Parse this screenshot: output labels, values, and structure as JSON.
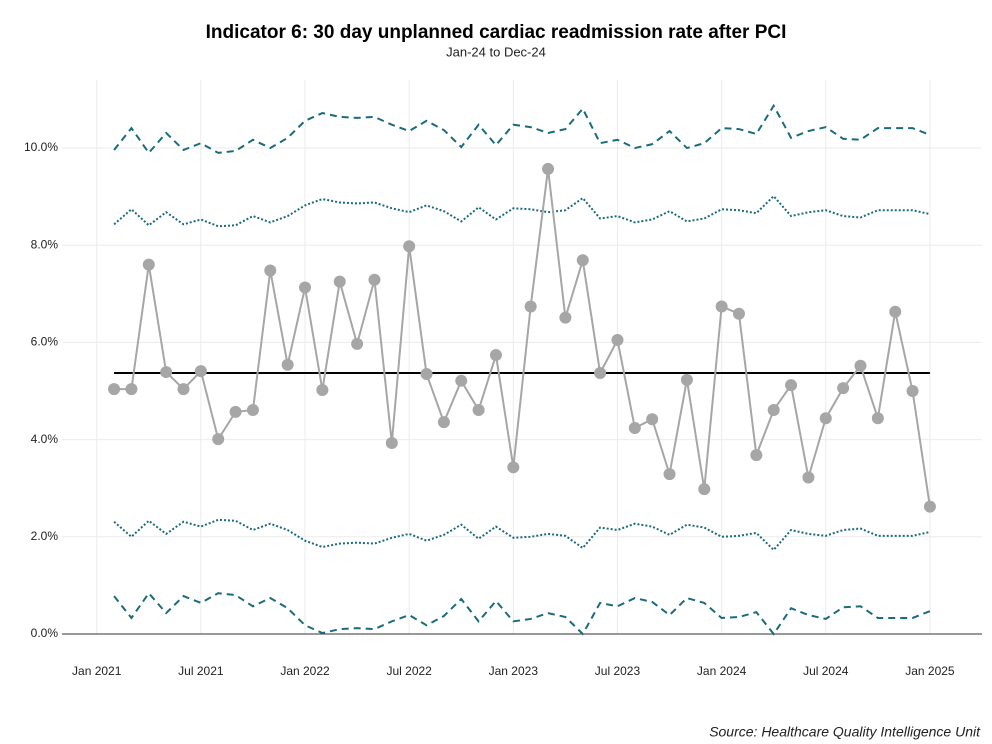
{
  "chart_data": {
    "type": "line",
    "title": "Indicator 6: 30 day unplanned cardiac readmission rate after PCI",
    "subtitle": "Jan-24 to Dec-24",
    "source": "Source: Healthcare Quality Intelligence Unit",
    "x": [
      "2021-02",
      "2021-03",
      "2021-04",
      "2021-05",
      "2021-06",
      "2021-07",
      "2021-08",
      "2021-09",
      "2021-10",
      "2021-11",
      "2021-12",
      "2022-01",
      "2022-02",
      "2022-03",
      "2022-04",
      "2022-05",
      "2022-06",
      "2022-07",
      "2022-08",
      "2022-09",
      "2022-10",
      "2022-11",
      "2022-12",
      "2023-01",
      "2023-02",
      "2023-03",
      "2023-04",
      "2023-05",
      "2023-06",
      "2023-07",
      "2023-08",
      "2023-09",
      "2023-10",
      "2023-11",
      "2023-12",
      "2024-01",
      "2024-02",
      "2024-03",
      "2024-04",
      "2024-05",
      "2024-06",
      "2024-07",
      "2024-08",
      "2024-09",
      "2024-10",
      "2024-11",
      "2024-12",
      "2025-01"
    ],
    "series": [
      {
        "color": "#1a6b7c",
        "linestyle": "dashed",
        "values": [
          9.96,
          10.41,
          9.9,
          10.31,
          9.96,
          10.1,
          9.9,
          9.94,
          10.17,
          10.0,
          10.21,
          10.56,
          10.72,
          10.64,
          10.62,
          10.64,
          10.48,
          10.35,
          10.56,
          10.37,
          10.02,
          10.48,
          10.06,
          10.48,
          10.43,
          10.31,
          10.39,
          10.81,
          10.1,
          10.17,
          10.0,
          10.08,
          10.35,
          10.0,
          10.1,
          10.41,
          10.39,
          10.29,
          10.87,
          10.21,
          10.35,
          10.43,
          10.19,
          10.17,
          10.41,
          10.41,
          10.41,
          10.27
        ]
      },
      {
        "color": "#1a6b7c",
        "linestyle": "dotted",
        "values": [
          8.43,
          8.74,
          8.41,
          8.68,
          8.43,
          8.53,
          8.39,
          8.41,
          8.6,
          8.47,
          8.6,
          8.82,
          8.95,
          8.88,
          8.86,
          8.88,
          8.76,
          8.68,
          8.82,
          8.7,
          8.49,
          8.78,
          8.53,
          8.76,
          8.74,
          8.68,
          8.72,
          8.97,
          8.55,
          8.6,
          8.47,
          8.53,
          8.7,
          8.49,
          8.55,
          8.74,
          8.72,
          8.66,
          9.01,
          8.6,
          8.68,
          8.72,
          8.6,
          8.57,
          8.72,
          8.72,
          8.72,
          8.64
        ]
      },
      {
        "color": "#000000",
        "linestyle": "solid",
        "values": [
          5.37,
          5.37,
          5.37,
          5.37,
          5.37,
          5.37,
          5.37,
          5.37,
          5.37,
          5.37,
          5.37,
          5.37,
          5.37,
          5.37,
          5.37,
          5.37,
          5.37,
          5.37,
          5.37,
          5.37,
          5.37,
          5.37,
          5.37,
          5.37,
          5.37,
          5.37,
          5.37,
          5.37,
          5.37,
          5.37,
          5.37,
          5.37,
          5.37,
          5.37,
          5.37,
          5.37,
          5.37,
          5.37,
          5.37,
          5.37,
          5.37,
          5.37,
          5.37,
          5.37,
          5.37,
          5.37,
          5.37,
          5.37
        ]
      },
      {
        "color": "#1a6b7c",
        "linestyle": "dotted",
        "values": [
          2.31,
          2.0,
          2.33,
          2.06,
          2.31,
          2.21,
          2.35,
          2.33,
          2.14,
          2.27,
          2.14,
          1.92,
          1.79,
          1.86,
          1.88,
          1.86,
          1.98,
          2.06,
          1.92,
          2.04,
          2.25,
          1.96,
          2.21,
          1.98,
          2.0,
          2.06,
          2.02,
          1.77,
          2.19,
          2.14,
          2.27,
          2.21,
          2.04,
          2.25,
          2.19,
          2.0,
          2.02,
          2.08,
          1.73,
          2.14,
          2.06,
          2.02,
          2.14,
          2.17,
          2.02,
          2.02,
          2.02,
          2.1
        ]
      },
      {
        "color": "#1a6b7c",
        "linestyle": "dashed",
        "values": [
          0.78,
          0.33,
          0.84,
          0.43,
          0.78,
          0.64,
          0.84,
          0.8,
          0.57,
          0.74,
          0.53,
          0.18,
          0.02,
          0.1,
          0.12,
          0.1,
          0.26,
          0.39,
          0.18,
          0.37,
          0.72,
          0.26,
          0.68,
          0.26,
          0.31,
          0.43,
          0.35,
          0.0,
          0.64,
          0.57,
          0.74,
          0.66,
          0.39,
          0.74,
          0.64,
          0.33,
          0.35,
          0.45,
          0.0,
          0.53,
          0.39,
          0.31,
          0.55,
          0.57,
          0.33,
          0.33,
          0.33,
          0.47
        ]
      },
      {
        "color": "#a6a6a6",
        "linestyle": "solid",
        "markers": true,
        "values": [
          5.04,
          5.04,
          7.6,
          5.39,
          5.04,
          5.41,
          4.01,
          4.57,
          4.61,
          7.48,
          5.54,
          7.13,
          5.02,
          7.25,
          5.97,
          7.29,
          3.93,
          7.98,
          5.35,
          4.36,
          5.21,
          4.61,
          5.74,
          3.43,
          6.74,
          9.57,
          6.51,
          7.69,
          5.37,
          6.05,
          4.24,
          4.42,
          3.29,
          5.23,
          2.98,
          6.74,
          6.59,
          3.68,
          4.61,
          5.12,
          3.22,
          4.44,
          5.06,
          5.52,
          4.44,
          6.63,
          5.0,
          2.62
        ]
      }
    ],
    "xlim": [
      "2020-11",
      "2025-04"
    ],
    "xticks": [
      {
        "value": "2021-01",
        "label": "Jan 2021"
      },
      {
        "value": "2021-07",
        "label": "Jul 2021"
      },
      {
        "value": "2022-01",
        "label": "Jan 2022"
      },
      {
        "value": "2022-07",
        "label": "Jul 2022"
      },
      {
        "value": "2023-01",
        "label": "Jan 2023"
      },
      {
        "value": "2023-07",
        "label": "Jul 2023"
      },
      {
        "value": "2024-01",
        "label": "Jan 2024"
      },
      {
        "value": "2024-07",
        "label": "Jul 2024"
      },
      {
        "value": "2025-01",
        "label": "Jan 2025"
      }
    ],
    "ylim": [
      0,
      11.4
    ],
    "yticks": [
      {
        "value": 0,
        "label": "0.0%"
      },
      {
        "value": 2,
        "label": "2.0%"
      },
      {
        "value": 4,
        "label": "4.0%"
      },
      {
        "value": 6,
        "label": "6.0%"
      },
      {
        "value": 8,
        "label": "8.0%"
      },
      {
        "value": 10,
        "label": "10.0%"
      }
    ],
    "grid": true
  }
}
